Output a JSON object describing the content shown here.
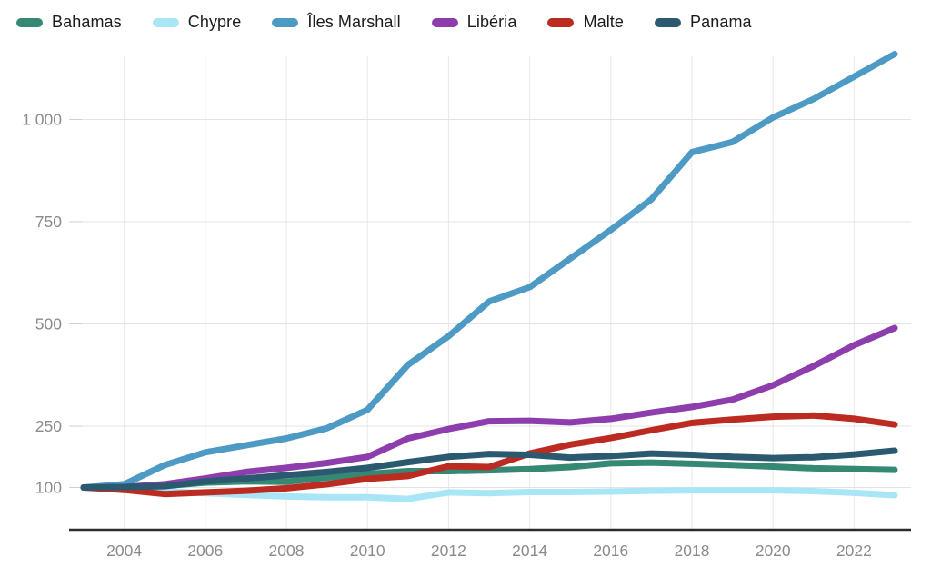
{
  "legend": {
    "items": [
      {
        "label": "Bahamas",
        "color": "#358873"
      },
      {
        "label": "Chypre",
        "color": "#a9e6f5"
      },
      {
        "label": "Îles Marshall",
        "color": "#4d9ac5"
      },
      {
        "label": "Libéria",
        "color": "#8e3dac"
      },
      {
        "label": "Malte",
        "color": "#bb2b21"
      },
      {
        "label": "Panama",
        "color": "#2b5a70"
      }
    ]
  },
  "axes": {
    "y_ticks": [
      {
        "value": 1000,
        "label": "1 000"
      },
      {
        "value": 750,
        "label": "750"
      },
      {
        "value": 500,
        "label": "500"
      },
      {
        "value": 250,
        "label": "250"
      },
      {
        "value": 100,
        "label": "100"
      }
    ],
    "x_ticks": [
      2004,
      2006,
      2008,
      2010,
      2012,
      2014,
      2016,
      2018,
      2020,
      2022
    ]
  },
  "chart_data": {
    "type": "line",
    "title": "",
    "xlabel": "",
    "ylabel": "",
    "x": [
      2003,
      2004,
      2005,
      2006,
      2007,
      2008,
      2009,
      2010,
      2011,
      2012,
      2013,
      2014,
      2015,
      2016,
      2017,
      2018,
      2019,
      2020,
      2021,
      2022,
      2023
    ],
    "series": [
      {
        "name": "Bahamas",
        "color": "#358873",
        "values": [
          100,
          102,
          104,
          112,
          115,
          114,
          124,
          133,
          140,
          140,
          142,
          145,
          150,
          159,
          161,
          158,
          155,
          151,
          147,
          145,
          143
        ]
      },
      {
        "name": "Chypre",
        "color": "#a9e6f5",
        "values": [
          100,
          96,
          91,
          86,
          82,
          78,
          76,
          76,
          72,
          88,
          86,
          89,
          89,
          90,
          92,
          93,
          93,
          93,
          91,
          87,
          81
        ]
      },
      {
        "name": "Îles Marshall",
        "color": "#4d9ac5",
        "values": [
          100,
          108,
          155,
          186,
          203,
          220,
          245,
          290,
          400,
          470,
          555,
          590,
          660,
          730,
          805,
          920,
          945,
          1005,
          1050,
          1105,
          1160
        ]
      },
      {
        "name": "Libéria",
        "color": "#8e3dac",
        "values": [
          100,
          101,
          108,
          122,
          138,
          148,
          160,
          175,
          220,
          243,
          262,
          263,
          259,
          268,
          283,
          297,
          315,
          350,
          397,
          448,
          490
        ]
      },
      {
        "name": "Malte",
        "color": "#bb2b21",
        "values": [
          100,
          94,
          84,
          88,
          92,
          98,
          108,
          121,
          128,
          152,
          150,
          183,
          205,
          221,
          240,
          258,
          266,
          273,
          276,
          268,
          254
        ]
      },
      {
        "name": "Panama",
        "color": "#2b5a70",
        "values": [
          100,
          101,
          103,
          115,
          122,
          130,
          138,
          148,
          162,
          175,
          182,
          180,
          173,
          177,
          183,
          180,
          175,
          172,
          174,
          181,
          190
        ]
      }
    ],
    "ylim": [
      0,
      1180
    ],
    "xlim": [
      2003,
      2023
    ],
    "grid": true,
    "legend_position": "top-left",
    "line_width": 7
  },
  "style": {
    "grid_color": "#e4e4e4",
    "vgrid_color": "#e9e9e9",
    "tick_stub_color": "#cfcfcf",
    "axis_color": "#2b2b2b",
    "tick_label_color": "#8b8b8b",
    "background": "#ffffff"
  }
}
